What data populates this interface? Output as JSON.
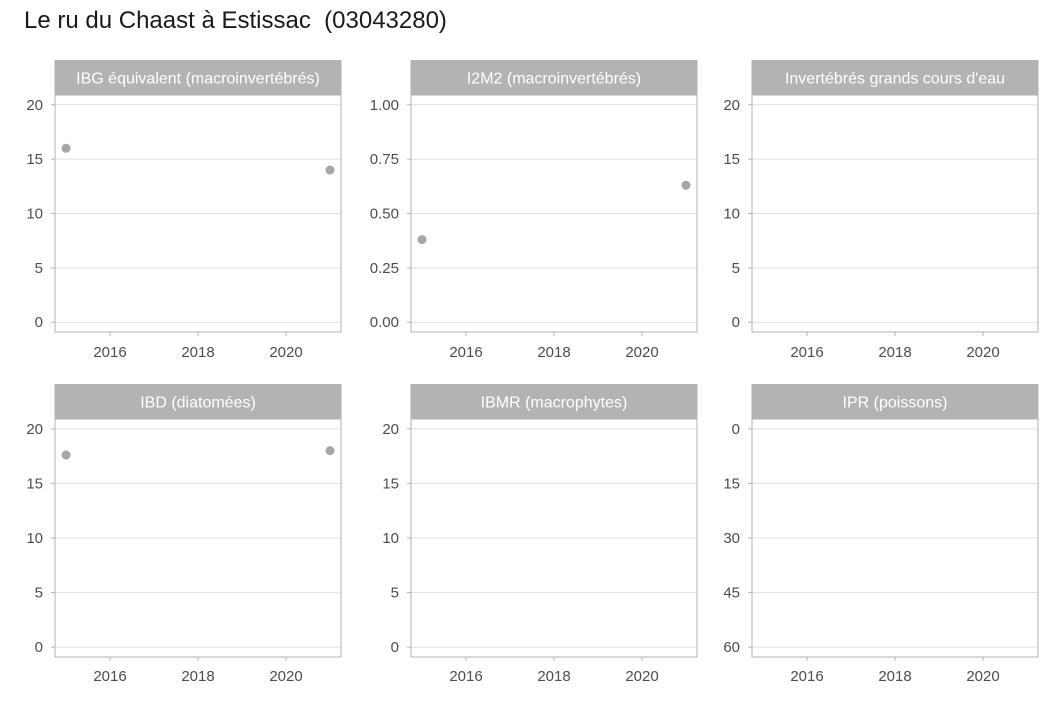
{
  "title": "Le ru du Chaast à Estissac  (03043280)",
  "colors": {
    "strip_bg": "#b3b3b3",
    "strip_text": "#ffffff",
    "panel_border": "#b3b3b3",
    "grid": "#e0e0e0",
    "point": "#a6a6a6",
    "tick_text": "#4d4d4d"
  },
  "chart_data": [
    {
      "type": "scatter",
      "title": "IBG équivalent (macroinvertébrés)",
      "xlim": [
        2014.75,
        2021.25
      ],
      "ylim": [
        -0.9,
        20.9
      ],
      "y_reversed": false,
      "x_ticks": [
        2016,
        2018,
        2020
      ],
      "x_tick_labels": [
        "2016",
        "2018",
        "2020"
      ],
      "y_ticks": [
        0,
        5,
        10,
        15,
        20
      ],
      "y_tick_labels": [
        "0",
        "5",
        "10",
        "15",
        "20"
      ],
      "points": [
        {
          "x": 2015.0,
          "y": 16
        },
        {
          "x": 2021.0,
          "y": 14
        }
      ],
      "grid": true
    },
    {
      "type": "scatter",
      "title": "I2M2 (macroinvertébrés)",
      "xlim": [
        2014.75,
        2021.25
      ],
      "ylim": [
        -0.045,
        1.045
      ],
      "y_reversed": false,
      "x_ticks": [
        2016,
        2018,
        2020
      ],
      "x_tick_labels": [
        "2016",
        "2018",
        "2020"
      ],
      "y_ticks": [
        0,
        0.25,
        0.5,
        0.75,
        1.0
      ],
      "y_tick_labels": [
        "0.00",
        "0.25",
        "0.50",
        "0.75",
        "1.00"
      ],
      "points": [
        {
          "x": 2015.0,
          "y": 0.38
        },
        {
          "x": 2021.0,
          "y": 0.63
        }
      ],
      "grid": true
    },
    {
      "type": "scatter",
      "title": "Invertébrés grands cours d'eau",
      "xlim": [
        2014.75,
        2021.25
      ],
      "ylim": [
        -0.9,
        20.9
      ],
      "y_reversed": false,
      "x_ticks": [
        2016,
        2018,
        2020
      ],
      "x_tick_labels": [
        "2016",
        "2018",
        "2020"
      ],
      "y_ticks": [
        0,
        5,
        10,
        15,
        20
      ],
      "y_tick_labels": [
        "0",
        "5",
        "10",
        "15",
        "20"
      ],
      "points": [],
      "grid": true
    },
    {
      "type": "scatter",
      "title": "IBD (diatomées)",
      "xlim": [
        2014.75,
        2021.25
      ],
      "ylim": [
        -0.9,
        20.9
      ],
      "y_reversed": false,
      "x_ticks": [
        2016,
        2018,
        2020
      ],
      "x_tick_labels": [
        "2016",
        "2018",
        "2020"
      ],
      "y_ticks": [
        0,
        5,
        10,
        15,
        20
      ],
      "y_tick_labels": [
        "0",
        "5",
        "10",
        "15",
        "20"
      ],
      "points": [
        {
          "x": 2015.0,
          "y": 17.6
        },
        {
          "x": 2021.0,
          "y": 18.0
        }
      ],
      "grid": true
    },
    {
      "type": "scatter",
      "title": "IBMR (macrophytes)",
      "xlim": [
        2014.75,
        2021.25
      ],
      "ylim": [
        -0.9,
        20.9
      ],
      "y_reversed": false,
      "x_ticks": [
        2016,
        2018,
        2020
      ],
      "x_tick_labels": [
        "2016",
        "2018",
        "2020"
      ],
      "y_ticks": [
        0,
        5,
        10,
        15,
        20
      ],
      "y_tick_labels": [
        "0",
        "5",
        "10",
        "15",
        "20"
      ],
      "points": [],
      "grid": true
    },
    {
      "type": "scatter",
      "title": "IPR (poissons)",
      "xlim": [
        2014.75,
        2021.25
      ],
      "ylim": [
        -2.7,
        62.7
      ],
      "y_reversed": true,
      "x_ticks": [
        2016,
        2018,
        2020
      ],
      "x_tick_labels": [
        "2016",
        "2018",
        "2020"
      ],
      "y_ticks": [
        0,
        15,
        30,
        45,
        60
      ],
      "y_tick_labels": [
        "0",
        "15",
        "30",
        "45",
        "60"
      ],
      "points": [],
      "grid": true
    }
  ]
}
